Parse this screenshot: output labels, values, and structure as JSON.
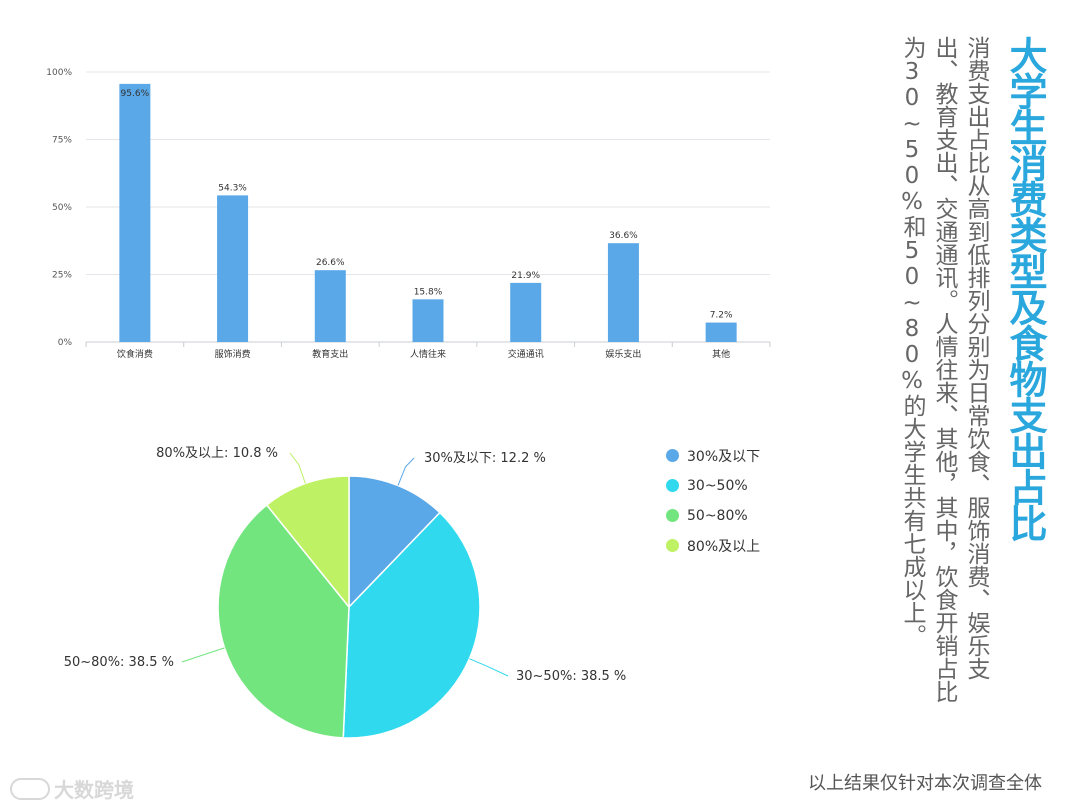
{
  "title": "大学生消费类型及食物支出占比",
  "body_text": "消费支出占比从高到低排列分别为日常饮食、服饰消费、娱乐支出、教育支出、交通通讯。人情往来、其他，其中，饮食开销占比为30~50%和50~80%的大学生共有七成以上。",
  "footer_note": "以上结果仅针对本次调查全体",
  "watermark": "大数跨境",
  "colors": {
    "bar": "#5aa8e8",
    "grid": "#e3e6ea",
    "axis": "#c9ced4",
    "title": "#2aa7dd",
    "pie": [
      "#5aa8e8",
      "#30d9ee",
      "#72e57f",
      "#bef163"
    ]
  },
  "chart_data": [
    {
      "type": "bar",
      "categories": [
        "饮食消费",
        "服饰消费",
        "教育支出",
        "人情往来",
        "交通通讯",
        "娱乐支出",
        "其他"
      ],
      "values": [
        95.6,
        54.3,
        26.6,
        15.8,
        21.9,
        36.6,
        7.2
      ],
      "data_labels": [
        "95.6%",
        "54.3%",
        "26.6%",
        "15.8%",
        "21.9%",
        "36.6%",
        "7.2%"
      ],
      "yticks": [
        "0%",
        "25%",
        "50%",
        "75%",
        "100%"
      ],
      "ylim": [
        0,
        100
      ],
      "grid": true
    },
    {
      "type": "pie",
      "labels": [
        "30%及以下",
        "30~50%",
        "50~80%",
        "80%及以上"
      ],
      "values": [
        12.2,
        38.5,
        38.5,
        10.8
      ],
      "data_labels": [
        "30%及以下: 12.2 %",
        "30~50%: 38.5 %",
        "50~80%: 38.5 %",
        "80%及以上: 10.8 %"
      ],
      "legend": [
        "30%及以下",
        "30~50%",
        "50~80%",
        "80%及以上"
      ],
      "legend_position": "right"
    }
  ]
}
